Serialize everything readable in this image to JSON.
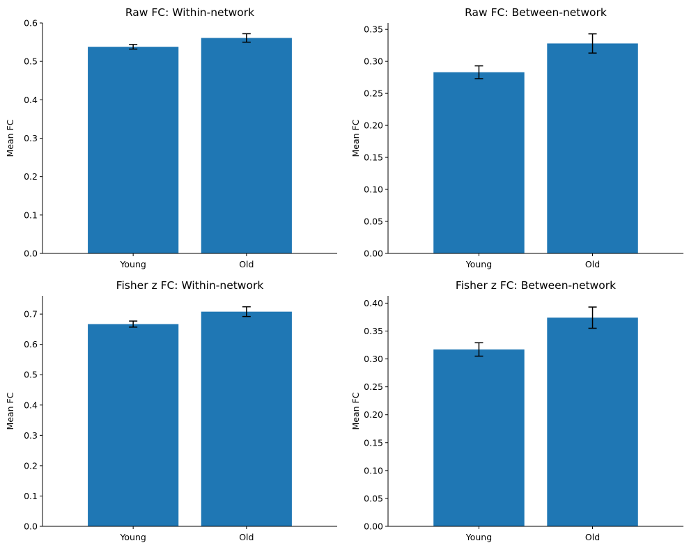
{
  "chart_data": [
    {
      "type": "bar",
      "title": "Raw FC: Within-network",
      "xlabel": "",
      "ylabel": "Mean FC",
      "categories": [
        "Young",
        "Old"
      ],
      "values": [
        0.538,
        0.561
      ],
      "errors": [
        0.006,
        0.011
      ],
      "ylim": [
        0,
        0.6
      ],
      "yticks": [
        0.0,
        0.1,
        0.2,
        0.3,
        0.4,
        0.5,
        0.6
      ],
      "ytick_labels": [
        "0.0",
        "0.1",
        "0.2",
        "0.3",
        "0.4",
        "0.5",
        "0.6"
      ],
      "grid": false,
      "bar_color": "#1f77b4"
    },
    {
      "type": "bar",
      "title": "Raw FC: Between-network",
      "xlabel": "",
      "ylabel": "Mean FC",
      "categories": [
        "Young",
        "Old"
      ],
      "values": [
        0.283,
        0.328
      ],
      "errors": [
        0.01,
        0.015
      ],
      "ylim": [
        0,
        0.36
      ],
      "yticks": [
        0.0,
        0.05,
        0.1,
        0.15,
        0.2,
        0.25,
        0.3,
        0.35
      ],
      "ytick_labels": [
        "0.00",
        "0.05",
        "0.10",
        "0.15",
        "0.20",
        "0.25",
        "0.30",
        "0.35"
      ],
      "grid": false,
      "bar_color": "#1f77b4"
    },
    {
      "type": "bar",
      "title": "Fisher z FC: Within-network",
      "xlabel": "",
      "ylabel": "Mean FC",
      "categories": [
        "Young",
        "Old"
      ],
      "values": [
        0.667,
        0.708
      ],
      "errors": [
        0.01,
        0.016
      ],
      "ylim": [
        0,
        0.76
      ],
      "yticks": [
        0.0,
        0.1,
        0.2,
        0.3,
        0.4,
        0.5,
        0.6,
        0.7
      ],
      "ytick_labels": [
        "0.0",
        "0.1",
        "0.2",
        "0.3",
        "0.4",
        "0.5",
        "0.6",
        "0.7"
      ],
      "grid": false,
      "bar_color": "#1f77b4"
    },
    {
      "type": "bar",
      "title": "Fisher z FC: Between-network",
      "xlabel": "",
      "ylabel": "Mean FC",
      "categories": [
        "Young",
        "Old"
      ],
      "values": [
        0.317,
        0.374
      ],
      "errors": [
        0.012,
        0.019
      ],
      "ylim": [
        0,
        0.413
      ],
      "yticks": [
        0.0,
        0.05,
        0.1,
        0.15,
        0.2,
        0.25,
        0.3,
        0.35,
        0.4
      ],
      "ytick_labels": [
        "0.00",
        "0.05",
        "0.10",
        "0.15",
        "0.20",
        "0.25",
        "0.30",
        "0.35",
        "0.40"
      ],
      "grid": false,
      "bar_color": "#1f77b4"
    }
  ]
}
